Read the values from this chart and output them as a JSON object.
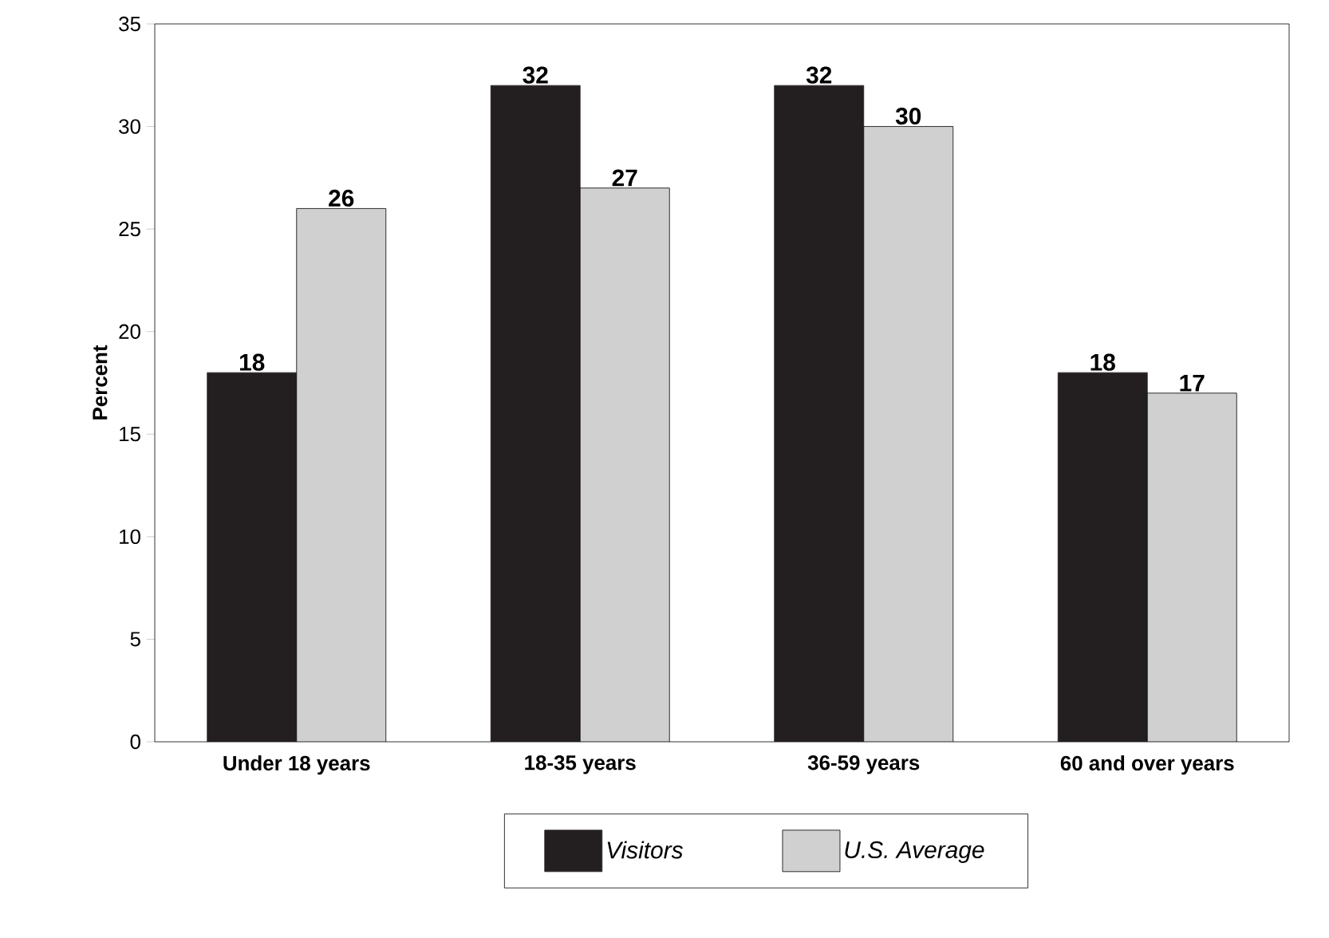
{
  "chart_data": {
    "type": "bar",
    "ylabel": "Percent",
    "categories": [
      "Under 18 years",
      "18-35 years",
      "36-59 years",
      "60 and over years"
    ],
    "series": [
      {
        "name": "Visitors",
        "color": "#231f20",
        "values": [
          18,
          32,
          32,
          18
        ]
      },
      {
        "name": "U.S. Average",
        "color": "#d0d0d0",
        "values": [
          26,
          27,
          30,
          17
        ]
      }
    ],
    "ylim": [
      0,
      35
    ],
    "yticks": [
      0,
      5,
      10,
      15,
      20,
      25,
      30,
      35
    ],
    "data_labels": true,
    "legend": "bottom",
    "grid": false
  }
}
